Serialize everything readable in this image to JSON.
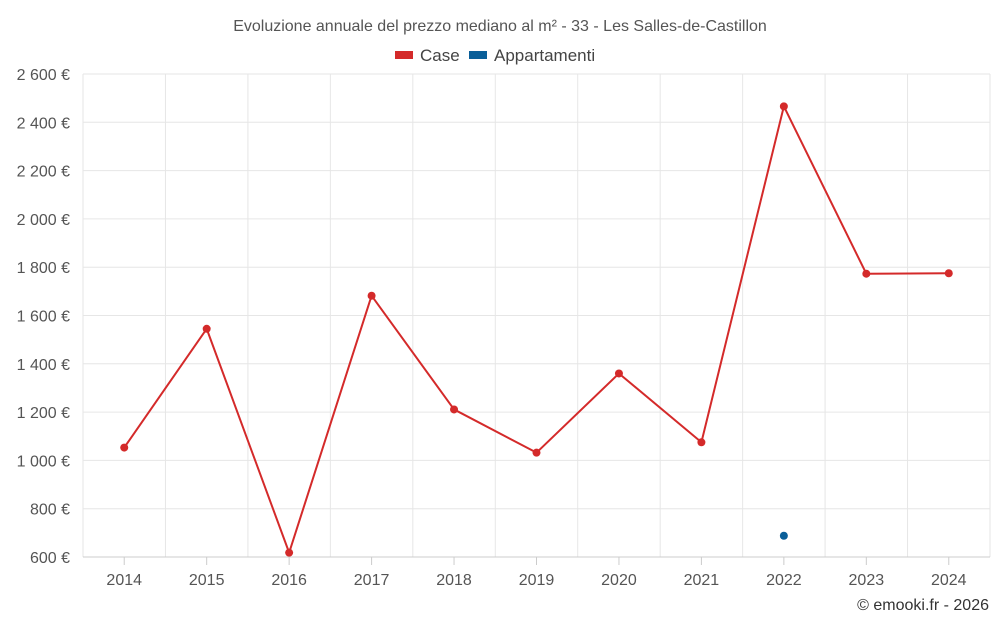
{
  "chart_data": {
    "type": "line",
    "title": "Evoluzione annuale del prezzo mediano al m² - 33 - Les Salles-de-Castillon",
    "xlabel": "",
    "ylabel": "",
    "categories": [
      "2014",
      "2015",
      "2016",
      "2017",
      "2018",
      "2019",
      "2020",
      "2021",
      "2022",
      "2023",
      "2024"
    ],
    "ylim": [
      600,
      2600
    ],
    "y_ticks": [
      600,
      800,
      1000,
      1200,
      1400,
      1600,
      1800,
      2000,
      2200,
      2400,
      2600
    ],
    "y_tick_labels": [
      "600 €",
      "800 €",
      "1 000 €",
      "1 200 €",
      "1 400 €",
      "1 600 €",
      "1 800 €",
      "2 000 €",
      "2 200 €",
      "2 400 €",
      "2 600 €"
    ],
    "grid": true,
    "legend_position": "top-center",
    "series": [
      {
        "name": "Case",
        "color": "#d42a2a",
        "values": [
          1053,
          1545,
          618,
          1682,
          1211,
          1032,
          1360,
          1075,
          2466,
          1773,
          1775
        ]
      },
      {
        "name": "Appartamenti",
        "color": "#0a5f99",
        "values": [
          null,
          null,
          null,
          null,
          null,
          null,
          null,
          null,
          688,
          null,
          null
        ]
      }
    ]
  },
  "credit": "© emooki.fr - 2026"
}
